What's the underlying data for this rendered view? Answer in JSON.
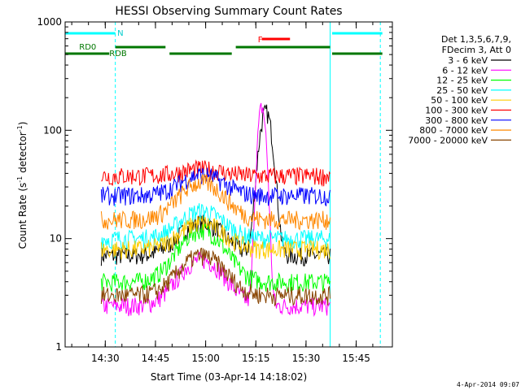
{
  "chart_data": {
    "type": "line",
    "title": "HESSI Observing Summary Count Rates",
    "xlabel": "Start Time (03-Apr-14 14:18:02)",
    "ylabel_main": "Count Rate (s",
    "ylabel_sup1": "-1",
    "ylabel_mid": " detector",
    "ylabel_sup2": "-1",
    "ylabel_end": ")",
    "x_range_min": [
      14.3,
      15.93
    ],
    "y_scale": "log",
    "ylim": [
      1,
      1000
    ],
    "y_ticks": [
      {
        "value": 1,
        "label": "1"
      },
      {
        "value": 10,
        "label": "10"
      },
      {
        "value": 100,
        "label": "100"
      },
      {
        "value": 1000,
        "label": "1000"
      }
    ],
    "x_ticks": [
      {
        "value": 14.5,
        "label": "14:30"
      },
      {
        "value": 14.75,
        "label": "14:45"
      },
      {
        "value": 15.0,
        "label": "15:00"
      },
      {
        "value": 15.25,
        "label": "15:15"
      },
      {
        "value": 15.5,
        "label": "15:30"
      },
      {
        "value": 15.75,
        "label": "15:45"
      }
    ],
    "legend_header": [
      "Det 1,3,5,6,7,9,",
      "FDecim 3, Att 0"
    ],
    "legend_position": "right",
    "series": [
      {
        "name": "3 - 6 keV",
        "color": "#000000",
        "key": "s1"
      },
      {
        "name": "6 - 12 keV",
        "color": "#ff00ff",
        "key": "s2"
      },
      {
        "name": "12 - 25 keV",
        "color": "#00ff00",
        "key": "s3"
      },
      {
        "name": "25 - 50 keV",
        "color": "#00ffff",
        "key": "s4"
      },
      {
        "name": "50 - 100 keV",
        "color": "#ffcc00",
        "key": "s5"
      },
      {
        "name": "100 - 300 keV",
        "color": "#ff0000",
        "key": "s6"
      },
      {
        "name": "300 - 800 keV",
        "color": "#0000ff",
        "key": "s7"
      },
      {
        "name": "800 - 7000 keV",
        "color": "#ff8800",
        "key": "s8"
      },
      {
        "name": "7000 - 20000 keV",
        "color": "#884400",
        "key": "s9"
      }
    ],
    "annotations": {
      "night_label": "N",
      "flare_label": "F",
      "rd0_label": "RD0",
      "rdb_label": "RDB",
      "night_segments": [
        [
          14.3,
          14.55
        ],
        [
          15.63,
          15.88
        ]
      ],
      "flare_segments": [
        [
          15.28,
          15.42
        ]
      ],
      "rdb_segments": [
        [
          14.3,
          14.52
        ],
        [
          14.55,
          14.8
        ],
        [
          14.82,
          15.13
        ],
        [
          15.15,
          15.62
        ],
        [
          15.63,
          15.88
        ]
      ],
      "vlines_solid": [
        14.3,
        15.62
      ],
      "vlines_dashed": [
        14.55,
        15.87
      ]
    }
  },
  "footer": {
    "timestamp": "4-Apr-2014 09:07"
  }
}
